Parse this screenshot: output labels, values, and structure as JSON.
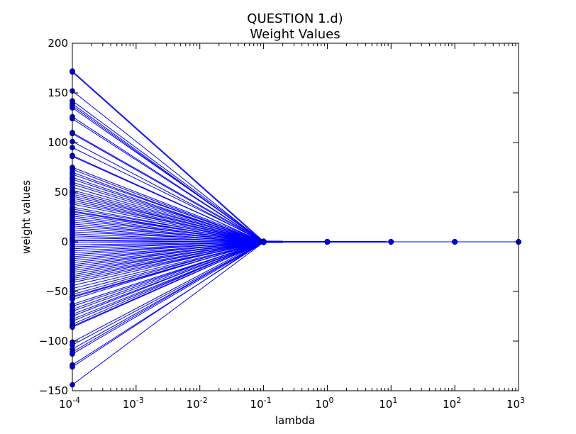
{
  "chart_data": {
    "type": "line",
    "title": "QUESTION 1.d)",
    "subtitle": "Weight Values",
    "xlabel": "lambda",
    "ylabel": "weight values",
    "xscale": "log",
    "xlim": [
      0.0001,
      1000
    ],
    "ylim": [
      -150,
      200
    ],
    "grid": false,
    "color": "#0000ff",
    "x": [
      0.0001,
      0.1,
      1,
      10,
      100,
      1000
    ],
    "x_tick_labels": [
      {
        "base": "10",
        "exp": "-4"
      },
      {
        "base": "10",
        "exp": "-3"
      },
      {
        "base": "10",
        "exp": "-2"
      },
      {
        "base": "10",
        "exp": "-1"
      },
      {
        "base": "10",
        "exp": "0"
      },
      {
        "base": "10",
        "exp": "1"
      },
      {
        "base": "10",
        "exp": "2"
      },
      {
        "base": "10",
        "exp": "3"
      }
    ],
    "y_ticks": [
      "200",
      "150",
      "100",
      "50",
      "0",
      "−50",
      "−100",
      "−150"
    ],
    "y_tick_values": [
      200,
      150,
      100,
      50,
      0,
      -50,
      -100,
      -150
    ],
    "series_start_values": [
      172,
      171,
      152,
      142,
      139,
      137,
      135,
      126,
      124,
      110,
      109,
      101,
      95,
      87,
      86,
      75,
      73,
      70,
      68,
      65,
      63,
      60,
      58,
      55,
      52,
      50,
      48,
      46,
      44,
      42,
      40,
      38,
      35,
      33,
      31,
      30,
      28,
      26,
      24,
      22,
      20,
      18,
      16,
      14,
      12,
      10,
      8,
      6,
      4,
      2,
      1,
      -1,
      -3,
      -5,
      -7,
      -9,
      -11,
      -13,
      -15,
      -17,
      -19,
      -21,
      -23,
      -25,
      -27,
      -29,
      -31,
      -33,
      -35,
      -37,
      -39,
      -41,
      -44,
      -47,
      -50,
      -53,
      -55,
      -56,
      -58,
      -63,
      -65,
      -68,
      -70,
      -73,
      -75,
      -78,
      -80,
      -83,
      -85,
      -86,
      -101,
      -104,
      -108,
      -111,
      -113,
      -124,
      -126,
      -144
    ],
    "series_later_values": [
      0.5,
      0.2,
      0.05,
      0.01,
      0.0
    ]
  }
}
